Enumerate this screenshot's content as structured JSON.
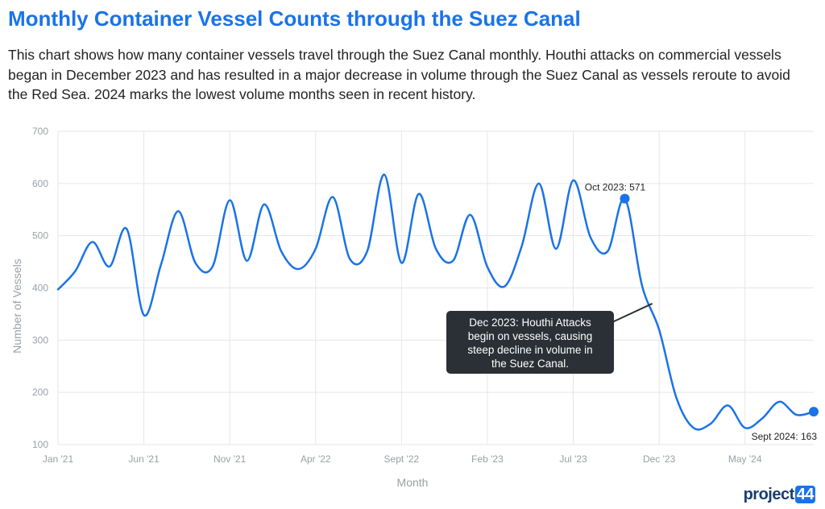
{
  "chart_data": {
    "type": "line",
    "title": "Monthly Container Vessel Counts through the Suez Canal",
    "subtitle": "This chart shows how many container vessels travel through the Suez Canal monthly. Houthi attacks on commercial vessels began in December 2023 and has resulted in a major decrease in volume through the Suez Canal as vessels reroute to avoid the Red Sea. 2024 marks the lowest volume months seen in recent history.",
    "xlabel": "Month",
    "ylabel": "Number of Vessels",
    "ylim": [
      100,
      700
    ],
    "yticks": [
      "100",
      "200",
      "300",
      "400",
      "500",
      "600",
      "700"
    ],
    "xticks": [
      {
        "label": "Jan '21",
        "index": 0
      },
      {
        "label": "Jun '21",
        "index": 5
      },
      {
        "label": "Nov '21",
        "index": 10
      },
      {
        "label": "Apr '22",
        "index": 15
      },
      {
        "label": "Sept '22",
        "index": 20
      },
      {
        "label": "Feb '23",
        "index": 25
      },
      {
        "label": "Jul '23",
        "index": 30
      },
      {
        "label": "Dec '23",
        "index": 35
      },
      {
        "label": "May '24",
        "index": 40
      }
    ],
    "grid": true,
    "line_color": "#1a73e8",
    "series": [
      {
        "name": "",
        "x": [
          "Jan '21",
          "Feb '21",
          "Mar '21",
          "Apr '21",
          "May '21",
          "Jun '21",
          "Jul '21",
          "Aug '21",
          "Sep '21",
          "Oct '21",
          "Nov '21",
          "Dec '21",
          "Jan '22",
          "Feb '22",
          "Mar '22",
          "Apr '22",
          "May '22",
          "Jun '22",
          "Jul '22",
          "Aug '22",
          "Sept '22",
          "Oct '22",
          "Nov '22",
          "Dec '22",
          "Jan '23",
          "Feb '23",
          "Mar '23",
          "Apr '23",
          "May '23",
          "Jun '23",
          "Jul '23",
          "Aug '23",
          "Sep '23",
          "Oct '23",
          "Nov '23",
          "Dec '23",
          "Jan '24",
          "Feb '24",
          "Mar '24",
          "Apr '24",
          "May '24",
          "Jun '24",
          "Jul '24",
          "Aug '24",
          "Sept 2024"
        ],
        "values": [
          397,
          432,
          488,
          441,
          513,
          348,
          445,
          547,
          448,
          441,
          568,
          452,
          560,
          470,
          436,
          475,
          574,
          455,
          470,
          617,
          448,
          580,
          475,
          452,
          540,
          440,
          403,
          480,
          600,
          475,
          606,
          497,
          470,
          571,
          405,
          320,
          190,
          132,
          140,
          175,
          132,
          150,
          182,
          157,
          163
        ]
      }
    ],
    "annotations": [
      {
        "text": "Oct 2023: 571",
        "index": 33,
        "value": 571
      },
      {
        "text": "Sept 2024: 163",
        "index": 44,
        "value": 163
      }
    ],
    "callout": {
      "lines": [
        "Dec 2023: Houthi Attacks",
        "begin on vessels, causing",
        "steep decline in volume in",
        "the Suez Canal."
      ],
      "index": 34.6,
      "value": 370
    }
  },
  "branding": {
    "logo_text": "project",
    "logo_number": "44"
  }
}
